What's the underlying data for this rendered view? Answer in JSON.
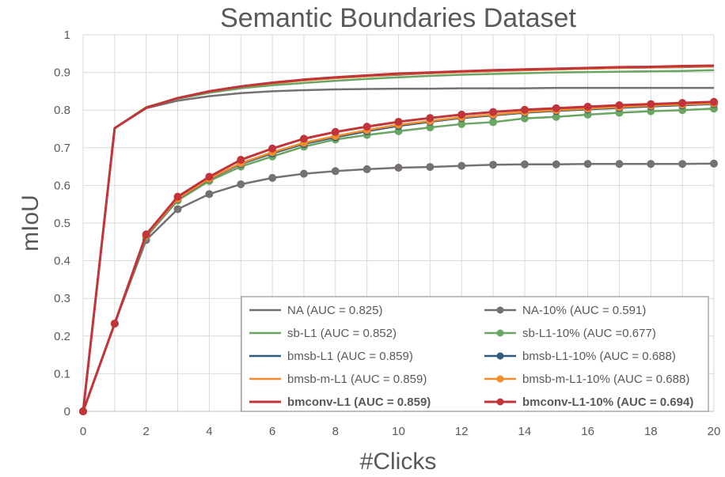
{
  "chart_data": {
    "type": "line",
    "title": "Semantic Boundaries Dataset",
    "xlabel": "#Clicks",
    "ylabel": "mIoU",
    "xlim": [
      0,
      20
    ],
    "ylim": [
      0,
      1
    ],
    "x_ticks": [
      "0",
      "2",
      "4",
      "6",
      "8",
      "10",
      "12",
      "14",
      "16",
      "18",
      "20"
    ],
    "y_ticks": [
      "0",
      "0.1",
      "0.2",
      "0.3",
      "0.4",
      "0.5",
      "0.6",
      "0.7",
      "0.8",
      "0.9",
      "1"
    ],
    "grid": true,
    "legend_position": "bottom-right",
    "x": [
      0,
      1,
      2,
      3,
      4,
      5,
      6,
      7,
      8,
      9,
      10,
      11,
      12,
      13,
      14,
      15,
      16,
      17,
      18,
      19,
      20
    ],
    "series": [
      {
        "name": "NA (AUC = 0.825)",
        "color": "#767171",
        "markers": false,
        "bold": false,
        "values": [
          0,
          0.752,
          0.805,
          0.825,
          0.837,
          0.845,
          0.85,
          0.853,
          0.855,
          0.856,
          0.857,
          0.857,
          0.858,
          0.858,
          0.858,
          0.859,
          0.859,
          0.859,
          0.859,
          0.859,
          0.859
        ]
      },
      {
        "name": "NA-10% (AUC = 0.591)",
        "color": "#767171",
        "markers": true,
        "bold": false,
        "values": [
          0,
          0.233,
          0.455,
          0.537,
          0.577,
          0.603,
          0.62,
          0.631,
          0.638,
          0.643,
          0.647,
          0.649,
          0.652,
          0.655,
          0.656,
          0.656,
          0.657,
          0.657,
          0.657,
          0.657,
          0.658
        ]
      },
      {
        "name": "sb-L1 (AUC = 0.852)",
        "color": "#6aa563",
        "markers": false,
        "bold": false,
        "values": [
          0,
          0.752,
          0.808,
          0.83,
          0.846,
          0.858,
          0.866,
          0.872,
          0.878,
          0.883,
          0.887,
          0.891,
          0.894,
          0.896,
          0.898,
          0.9,
          0.901,
          0.902,
          0.903,
          0.904,
          0.906
        ]
      },
      {
        "name": "sb-L1-10% (AUC =0.677)",
        "color": "#6aa563",
        "markers": true,
        "bold": false,
        "values": [
          0,
          0.233,
          0.463,
          0.56,
          0.612,
          0.65,
          0.677,
          0.703,
          0.722,
          0.734,
          0.744,
          0.754,
          0.763,
          0.768,
          0.778,
          0.782,
          0.788,
          0.793,
          0.797,
          0.8,
          0.804
        ]
      },
      {
        "name": "bmsb-L1 (AUC = 0.859)",
        "color": "#2e5a7e",
        "markers": false,
        "bold": false,
        "values": [
          0,
          0.752,
          0.807,
          0.832,
          0.849,
          0.862,
          0.871,
          0.879,
          0.885,
          0.89,
          0.894,
          0.898,
          0.901,
          0.904,
          0.906,
          0.908,
          0.91,
          0.912,
          0.913,
          0.914,
          0.916
        ]
      },
      {
        "name": "bmsb-L1-10% (AUC = 0.688)",
        "color": "#2e5a7e",
        "markers": true,
        "bold": false,
        "values": [
          0,
          0.233,
          0.466,
          0.564,
          0.617,
          0.657,
          0.685,
          0.71,
          0.728,
          0.744,
          0.758,
          0.769,
          0.779,
          0.786,
          0.793,
          0.798,
          0.802,
          0.806,
          0.81,
          0.813,
          0.816
        ]
      },
      {
        "name": "bmsb-m-L1 (AUC = 0.859)",
        "color": "#f08c2a",
        "markers": false,
        "bold": false,
        "values": [
          0,
          0.752,
          0.807,
          0.832,
          0.849,
          0.862,
          0.871,
          0.879,
          0.885,
          0.89,
          0.895,
          0.898,
          0.901,
          0.904,
          0.906,
          0.908,
          0.91,
          0.912,
          0.913,
          0.915,
          0.916
        ]
      },
      {
        "name": "bmsb-m-L1-10% (AUC = 0.688)",
        "color": "#f08c2a",
        "markers": true,
        "bold": false,
        "values": [
          0,
          0.233,
          0.467,
          0.565,
          0.618,
          0.659,
          0.688,
          0.713,
          0.731,
          0.747,
          0.761,
          0.771,
          0.781,
          0.788,
          0.795,
          0.8,
          0.804,
          0.808,
          0.812,
          0.815,
          0.818
        ]
      },
      {
        "name": "bmconv-L1 (AUC = 0.859)",
        "color": "#c0343a",
        "markers": false,
        "bold": true,
        "values": [
          0,
          0.752,
          0.806,
          0.832,
          0.85,
          0.863,
          0.873,
          0.881,
          0.887,
          0.892,
          0.897,
          0.9,
          0.903,
          0.906,
          0.908,
          0.91,
          0.912,
          0.914,
          0.915,
          0.917,
          0.918
        ]
      },
      {
        "name": "bmconv-L1-10% (AUC = 0.694)",
        "color": "#c0343a",
        "markers": true,
        "bold": true,
        "values": [
          0,
          0.233,
          0.47,
          0.57,
          0.623,
          0.668,
          0.698,
          0.724,
          0.742,
          0.756,
          0.769,
          0.779,
          0.788,
          0.795,
          0.801,
          0.805,
          0.809,
          0.813,
          0.816,
          0.819,
          0.822
        ]
      }
    ]
  }
}
